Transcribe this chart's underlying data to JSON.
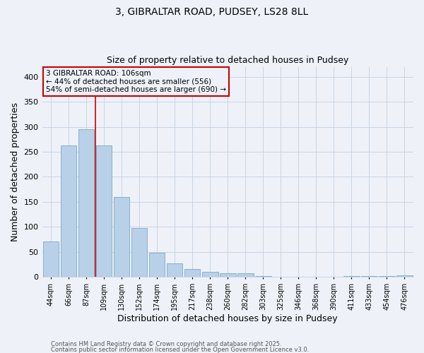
{
  "title1": "3, GIBRALTAR ROAD, PUDSEY, LS28 8LL",
  "title2": "Size of property relative to detached houses in Pudsey",
  "xlabel": "Distribution of detached houses by size in Pudsey",
  "ylabel": "Number of detached properties",
  "categories": [
    "44sqm",
    "66sqm",
    "87sqm",
    "109sqm",
    "130sqm",
    "152sqm",
    "174sqm",
    "195sqm",
    "217sqm",
    "238sqm",
    "260sqm",
    "282sqm",
    "303sqm",
    "325sqm",
    "346sqm",
    "368sqm",
    "390sqm",
    "411sqm",
    "433sqm",
    "454sqm",
    "476sqm"
  ],
  "values": [
    70,
    262,
    295,
    262,
    160,
    97,
    48,
    27,
    16,
    10,
    7,
    7,
    2,
    0,
    0,
    0,
    0,
    2,
    1,
    1,
    3
  ],
  "bar_color": "#b8d0e8",
  "bar_edge_color": "#7aaac8",
  "grid_color": "#c8d4e4",
  "annotation_box_color": "#cc0000",
  "annotation_text": "3 GIBRALTAR ROAD: 106sqm\n← 44% of detached houses are smaller (556)\n54% of semi-detached houses are larger (690) →",
  "redline_x": 2.5,
  "footer1": "Contains HM Land Registry data © Crown copyright and database right 2025.",
  "footer2": "Contains public sector information licensed under the Open Government Licence v3.0.",
  "ylim": [
    0,
    420
  ],
  "yticks": [
    0,
    50,
    100,
    150,
    200,
    250,
    300,
    350,
    400
  ],
  "background_color": "#eef2f8"
}
